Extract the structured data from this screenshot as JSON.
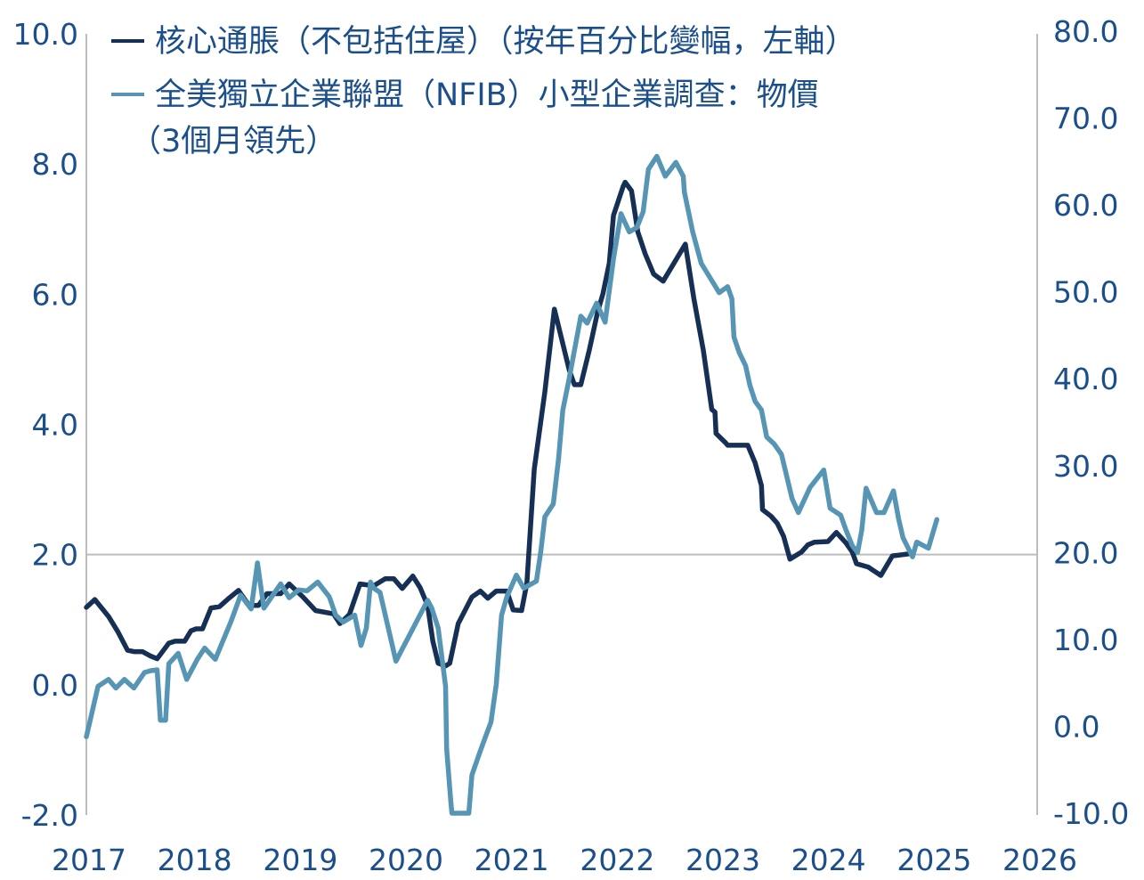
{
  "chart_data": {
    "type": "line",
    "title": "",
    "legend_position": "top-left",
    "legend": [
      {
        "label": "核心通脹（不包括住屋）（按年百分比變幅，左軸）",
        "color": "#162f55"
      },
      {
        "label_line1": "全美獨立企業聯盟（NFIB）小型企業調查：物價",
        "label_line2": "（3個月領先）",
        "color": "#5795b5"
      }
    ],
    "x_ticks": [
      "2017",
      "2018",
      "2019",
      "2020",
      "2021",
      "2022",
      "2023",
      "2024",
      "2025",
      "2026"
    ],
    "xlim": [
      2017,
      2026
    ],
    "y_left": {
      "ylim": [
        -2,
        10
      ],
      "ticks": [
        "-2.0",
        "0.0",
        "2.0",
        "4.0",
        "6.0",
        "8.0",
        "10.0"
      ],
      "tick_values": [
        -2,
        0,
        2,
        4,
        6,
        8,
        10
      ]
    },
    "y_right": {
      "ylim": [
        -10,
        80
      ],
      "ticks": [
        "-10.0",
        "0.0",
        "10.0",
        "20.0",
        "30.0",
        "40.0",
        "50.0",
        "60.0",
        "70.0",
        "80.0"
      ],
      "tick_values": [
        -10,
        0,
        10,
        20,
        30,
        40,
        50,
        60,
        70,
        80
      ]
    },
    "reference_line_left": 2.0,
    "series": [
      {
        "name": "core_inflation",
        "axis": "left",
        "color": "#162f55",
        "points": [
          [
            2017.0,
            1.19
          ],
          [
            2017.08,
            1.31
          ],
          [
            2017.21,
            1.05
          ],
          [
            2017.3,
            0.81
          ],
          [
            2017.39,
            0.53
          ],
          [
            2017.45,
            0.51
          ],
          [
            2017.53,
            0.51
          ],
          [
            2017.61,
            0.44
          ],
          [
            2017.67,
            0.4
          ],
          [
            2017.78,
            0.64
          ],
          [
            2017.84,
            0.67
          ],
          [
            2017.93,
            0.67
          ],
          [
            2017.99,
            0.83
          ],
          [
            2018.04,
            0.86
          ],
          [
            2018.1,
            0.86
          ],
          [
            2018.18,
            1.18
          ],
          [
            2018.26,
            1.2
          ],
          [
            2018.35,
            1.33
          ],
          [
            2018.44,
            1.45
          ],
          [
            2018.54,
            1.22
          ],
          [
            2018.63,
            1.22
          ],
          [
            2018.71,
            1.4
          ],
          [
            2018.84,
            1.4
          ],
          [
            2018.92,
            1.55
          ],
          [
            2019.05,
            1.35
          ],
          [
            2019.17,
            1.14
          ],
          [
            2019.34,
            1.09
          ],
          [
            2019.4,
            0.94
          ],
          [
            2019.49,
            1.08
          ],
          [
            2019.59,
            1.55
          ],
          [
            2019.72,
            1.52
          ],
          [
            2019.83,
            1.63
          ],
          [
            2019.91,
            1.63
          ],
          [
            2019.99,
            1.48
          ],
          [
            2020.09,
            1.67
          ],
          [
            2020.16,
            1.49
          ],
          [
            2020.23,
            1.22
          ],
          [
            2020.28,
            0.67
          ],
          [
            2020.33,
            0.33
          ],
          [
            2020.4,
            0.29
          ],
          [
            2020.44,
            0.33
          ],
          [
            2020.52,
            0.94
          ],
          [
            2020.65,
            1.35
          ],
          [
            2020.73,
            1.44
          ],
          [
            2020.8,
            1.33
          ],
          [
            2020.88,
            1.44
          ],
          [
            2020.98,
            1.44
          ],
          [
            2021.04,
            1.15
          ],
          [
            2021.12,
            1.14
          ],
          [
            2021.17,
            1.56
          ],
          [
            2021.24,
            3.31
          ],
          [
            2021.34,
            4.5
          ],
          [
            2021.43,
            5.77
          ],
          [
            2021.57,
            4.84
          ],
          [
            2021.62,
            4.61
          ],
          [
            2021.68,
            4.61
          ],
          [
            2021.76,
            5.14
          ],
          [
            2021.84,
            5.73
          ],
          [
            2021.89,
            6.01
          ],
          [
            2021.95,
            6.48
          ],
          [
            2021.99,
            7.21
          ],
          [
            2022.08,
            7.65
          ],
          [
            2022.1,
            7.72
          ],
          [
            2022.16,
            7.59
          ],
          [
            2022.22,
            6.96
          ],
          [
            2022.29,
            6.62
          ],
          [
            2022.37,
            6.31
          ],
          [
            2022.46,
            6.2
          ],
          [
            2022.67,
            6.77
          ],
          [
            2022.75,
            5.94
          ],
          [
            2022.84,
            5.14
          ],
          [
            2022.92,
            4.23
          ],
          [
            2022.95,
            4.19
          ],
          [
            2022.96,
            3.86
          ],
          [
            2023.05,
            3.72
          ],
          [
            2023.07,
            3.68
          ],
          [
            2023.26,
            3.68
          ],
          [
            2023.33,
            3.41
          ],
          [
            2023.39,
            3.06
          ],
          [
            2023.4,
            2.69
          ],
          [
            2023.48,
            2.59
          ],
          [
            2023.54,
            2.48
          ],
          [
            2023.6,
            2.28
          ],
          [
            2023.66,
            1.93
          ],
          [
            2023.77,
            2.04
          ],
          [
            2023.83,
            2.15
          ],
          [
            2023.89,
            2.19
          ],
          [
            2024.02,
            2.2
          ],
          [
            2024.1,
            2.34
          ],
          [
            2024.19,
            2.18
          ],
          [
            2024.25,
            2.04
          ],
          [
            2024.29,
            1.86
          ],
          [
            2024.4,
            1.81
          ],
          [
            2024.52,
            1.68
          ],
          [
            2024.63,
            1.98
          ],
          [
            2024.73,
            2.0
          ],
          [
            2024.78,
            2.01
          ]
        ]
      },
      {
        "name": "nfib_prices",
        "axis": "right",
        "color": "#5795b5",
        "points": [
          [
            2017.0,
            -1.2
          ],
          [
            2017.11,
            4.6
          ],
          [
            2017.21,
            5.4
          ],
          [
            2017.28,
            4.4
          ],
          [
            2017.36,
            5.4
          ],
          [
            2017.45,
            4.4
          ],
          [
            2017.55,
            6.2
          ],
          [
            2017.61,
            6.4
          ],
          [
            2017.67,
            6.5
          ],
          [
            2017.7,
            0.7
          ],
          [
            2017.75,
            0.7
          ],
          [
            2017.78,
            7.2
          ],
          [
            2017.87,
            8.4
          ],
          [
            2017.95,
            5.4
          ],
          [
            2018.05,
            7.7
          ],
          [
            2018.12,
            9.0
          ],
          [
            2018.22,
            7.7
          ],
          [
            2018.37,
            12.1
          ],
          [
            2018.46,
            15.1
          ],
          [
            2018.56,
            13.5
          ],
          [
            2018.62,
            18.8
          ],
          [
            2018.68,
            13.6
          ],
          [
            2018.84,
            16.4
          ],
          [
            2018.92,
            14.8
          ],
          [
            2019.01,
            15.7
          ],
          [
            2019.09,
            15.6
          ],
          [
            2019.19,
            16.6
          ],
          [
            2019.3,
            14.9
          ],
          [
            2019.36,
            12.8
          ],
          [
            2019.43,
            12.0
          ],
          [
            2019.54,
            12.8
          ],
          [
            2019.6,
            9.3
          ],
          [
            2019.65,
            11.3
          ],
          [
            2019.69,
            16.6
          ],
          [
            2019.72,
            15.9
          ],
          [
            2019.78,
            15.4
          ],
          [
            2019.86,
            11.2
          ],
          [
            2019.93,
            7.5
          ],
          [
            2020.23,
            14.5
          ],
          [
            2020.27,
            13.6
          ],
          [
            2020.33,
            11.3
          ],
          [
            2020.4,
            4.6
          ],
          [
            2020.41,
            -2.6
          ],
          [
            2020.45,
            -8.7
          ],
          [
            2020.46,
            -10.0
          ],
          [
            2020.62,
            -10.0
          ],
          [
            2020.65,
            -5.6
          ],
          [
            2020.73,
            -2.8
          ],
          [
            2020.83,
            0.5
          ],
          [
            2020.88,
            4.8
          ],
          [
            2020.93,
            12.8
          ],
          [
            2020.98,
            14.9
          ],
          [
            2021.07,
            17.4
          ],
          [
            2021.14,
            15.9
          ],
          [
            2021.26,
            16.7
          ],
          [
            2021.3,
            20.0
          ],
          [
            2021.34,
            24.1
          ],
          [
            2021.42,
            25.6
          ],
          [
            2021.47,
            30.8
          ],
          [
            2021.51,
            36.4
          ],
          [
            2021.57,
            40.0
          ],
          [
            2021.68,
            47.2
          ],
          [
            2021.74,
            46.4
          ],
          [
            2021.83,
            48.7
          ],
          [
            2021.91,
            46.5
          ],
          [
            2021.99,
            53.8
          ],
          [
            2022.06,
            59.0
          ],
          [
            2022.14,
            56.9
          ],
          [
            2022.21,
            57.4
          ],
          [
            2022.27,
            59.2
          ],
          [
            2022.32,
            64.1
          ],
          [
            2022.4,
            65.6
          ],
          [
            2022.48,
            63.3
          ],
          [
            2022.58,
            64.9
          ],
          [
            2022.65,
            63.3
          ],
          [
            2022.66,
            61.5
          ],
          [
            2022.74,
            56.9
          ],
          [
            2022.82,
            53.3
          ],
          [
            2022.91,
            51.5
          ],
          [
            2022.99,
            49.9
          ],
          [
            2023.07,
            50.6
          ],
          [
            2023.11,
            49.2
          ],
          [
            2023.13,
            44.8
          ],
          [
            2023.18,
            43.0
          ],
          [
            2023.24,
            41.5
          ],
          [
            2023.28,
            39.3
          ],
          [
            2023.33,
            37.4
          ],
          [
            2023.39,
            36.4
          ],
          [
            2023.44,
            33.3
          ],
          [
            2023.51,
            32.5
          ],
          [
            2023.58,
            31.3
          ],
          [
            2023.68,
            26.2
          ],
          [
            2023.74,
            24.6
          ],
          [
            2023.85,
            27.5
          ],
          [
            2023.98,
            29.5
          ],
          [
            2024.04,
            25.1
          ],
          [
            2024.14,
            24.3
          ],
          [
            2024.19,
            22.6
          ],
          [
            2024.25,
            20.8
          ],
          [
            2024.3,
            20.0
          ],
          [
            2024.34,
            22.6
          ],
          [
            2024.38,
            27.4
          ],
          [
            2024.48,
            24.6
          ],
          [
            2024.55,
            24.6
          ],
          [
            2024.64,
            27.1
          ],
          [
            2024.69,
            23.8
          ],
          [
            2024.73,
            21.7
          ],
          [
            2024.82,
            19.5
          ],
          [
            2024.86,
            21.2
          ],
          [
            2024.97,
            20.5
          ],
          [
            2025.05,
            23.8
          ]
        ]
      }
    ]
  }
}
